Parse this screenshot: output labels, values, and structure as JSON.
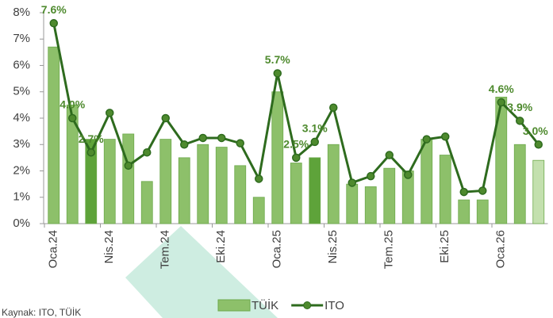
{
  "chart_data": {
    "type": "bar-line",
    "categories": [
      "Oca.24",
      null,
      null,
      "Nis.24",
      null,
      null,
      "Tem.24",
      null,
      null,
      "Eki.24",
      null,
      null,
      "Oca.25",
      null,
      null,
      "Nis.25",
      null,
      null,
      "Tem.25",
      null,
      null,
      "Eki.25",
      null,
      null,
      "Oca.26",
      null,
      null
    ],
    "series": [
      {
        "name": "TÜİK",
        "type": "bar",
        "color": "#8dc06a",
        "colors": [
          "#8dc06a",
          "#8dc06a",
          "#5ea33a",
          "#8dc06a",
          "#8dc06a",
          "#8dc06a",
          "#8dc06a",
          "#8dc06a",
          "#8dc06a",
          "#8dc06a",
          "#8dc06a",
          "#8dc06a",
          "#8dc06a",
          "#8dc06a",
          "#5ea33a",
          "#8dc06a",
          "#8dc06a",
          "#8dc06a",
          "#8dc06a",
          "#8dc06a",
          "#8dc06a",
          "#8dc06a",
          "#8dc06a",
          "#8dc06a",
          "#8dc06a",
          "#8dc06a",
          "#c3e0ae"
        ],
        "values": [
          6.7,
          4.5,
          3.2,
          3.2,
          3.4,
          1.6,
          3.2,
          2.5,
          3.0,
          2.9,
          2.2,
          1.0,
          5.0,
          2.3,
          2.5,
          3.0,
          1.5,
          1.4,
          2.1,
          2.0,
          3.2,
          2.6,
          0.9,
          0.9,
          4.8,
          3.0,
          2.4
        ]
      },
      {
        "name": "ITO",
        "type": "line",
        "color": "#2e6b1e",
        "values": [
          7.6,
          4.0,
          2.7,
          4.2,
          2.2,
          2.7,
          4.0,
          3.0,
          3.25,
          3.25,
          3.05,
          1.7,
          5.7,
          2.5,
          3.1,
          4.4,
          1.55,
          1.8,
          2.6,
          1.85,
          3.2,
          3.3,
          1.2,
          1.25,
          4.6,
          3.9,
          3.0
        ],
        "value_labels": [
          "7.6%",
          "4.0%",
          "2.7%",
          null,
          null,
          null,
          null,
          null,
          null,
          null,
          null,
          null,
          "5.7%",
          "2.5%",
          "3.1%",
          null,
          null,
          null,
          null,
          null,
          null,
          null,
          null,
          null,
          "4.6%",
          "3.9%",
          "3.0%"
        ]
      }
    ],
    "ylim": [
      0,
      8
    ],
    "yticks": [
      {
        "value": 0,
        "label": "0%"
      },
      {
        "value": 1,
        "label": "1%"
      },
      {
        "value": 2,
        "label": "2%"
      },
      {
        "value": 3,
        "label": "3%"
      },
      {
        "value": 4,
        "label": "4%"
      },
      {
        "value": 5,
        "label": "5%"
      },
      {
        "value": 6,
        "label": "6%"
      },
      {
        "value": 7,
        "label": "7%"
      },
      {
        "value": 8,
        "label": "8%"
      }
    ],
    "source": "Kaynak: ITO, TÜİK"
  }
}
